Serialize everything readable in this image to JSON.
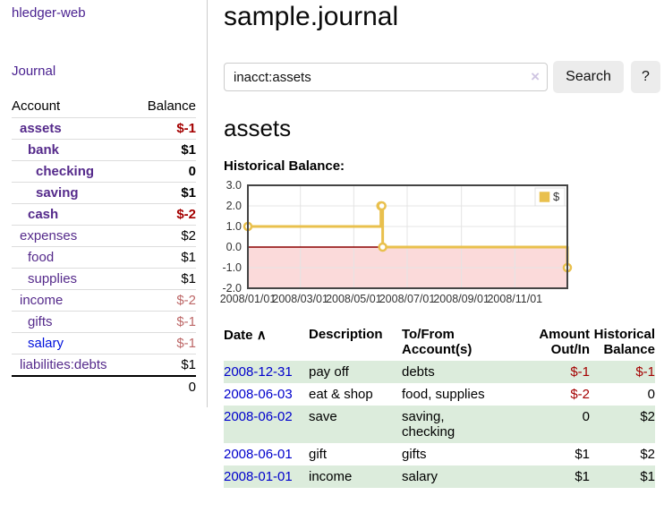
{
  "header": {
    "title": "sample.journal"
  },
  "search": {
    "value": "inacct:assets",
    "clear_icon": "×",
    "button_label": "Search",
    "help_label": "?"
  },
  "account_page": {
    "heading": "assets",
    "chart_label": "Historical Balance:"
  },
  "sidebar": {
    "app_title": "hledger-web",
    "nav": {
      "journal_label": "Journal"
    },
    "accounts_table": {
      "headers": {
        "account": "Account",
        "balance": "Balance"
      },
      "rows": [
        {
          "name": "assets",
          "depth": 1,
          "bold": true,
          "balance": "$-1",
          "balance_style": "neg-strong"
        },
        {
          "name": "bank",
          "depth": 2,
          "bold": true,
          "balance": "$1",
          "balance_style": "pos"
        },
        {
          "name": "checking",
          "depth": 3,
          "bold": true,
          "balance": "0",
          "balance_style": "pos"
        },
        {
          "name": "saving",
          "depth": 3,
          "bold": true,
          "balance": "$1",
          "balance_style": "pos"
        },
        {
          "name": "cash",
          "depth": 2,
          "bold": true,
          "balance": "$-2",
          "balance_style": "neg-strong"
        },
        {
          "name": "expenses",
          "depth": 1,
          "bold": false,
          "balance": "$2",
          "balance_style": "pos"
        },
        {
          "name": "food",
          "depth": 2,
          "bold": false,
          "balance": "$1",
          "balance_style": "pos"
        },
        {
          "name": "supplies",
          "depth": 2,
          "bold": false,
          "balance": "$1",
          "balance_style": "pos"
        },
        {
          "name": "income",
          "depth": 1,
          "bold": false,
          "balance": "$-2",
          "balance_style": "neg-muted"
        },
        {
          "name": "gifts",
          "depth": 2,
          "bold": false,
          "balance": "$-1",
          "balance_style": "neg-muted"
        },
        {
          "name": "salary",
          "depth": 2,
          "bold": false,
          "balance": "$-1",
          "balance_style": "neg-muted",
          "link_color": "blue"
        },
        {
          "name": "liabilities:debts",
          "depth": 1,
          "bold": false,
          "balance": "$1",
          "balance_style": "pos"
        }
      ],
      "total": "0"
    }
  },
  "chart_data": {
    "type": "line",
    "step": true,
    "series": [
      {
        "name": "$",
        "color": "#e9c04d",
        "points": [
          [
            "2008-01-01",
            1
          ],
          [
            "2008-06-01",
            2
          ],
          [
            "2008-06-02",
            2
          ],
          [
            "2008-06-03",
            0
          ],
          [
            "2008-12-31",
            -1
          ]
        ]
      }
    ],
    "x_ticks": [
      "2008/01/01",
      "2008/03/01",
      "2008/05/01",
      "2008/07/01",
      "2008/09/01",
      "2008/11/01"
    ],
    "y_ticks": [
      3.0,
      2.0,
      1.0,
      0.0,
      -1.0,
      -2.0
    ],
    "ylim": [
      -2,
      3
    ],
    "x_range": [
      "2008-01-01",
      "2008-12-31"
    ],
    "grid": true,
    "legend_position": "top-right",
    "negative_region_shaded": true
  },
  "register_table": {
    "headers": {
      "date": "Date",
      "sort_indicator": "∧",
      "description": "Description",
      "account": "To/From\nAccount(s)",
      "amount": "Amount\nOut/In",
      "balance": "Historical\nBalance"
    },
    "rows": [
      {
        "date": "2008-12-31",
        "description": "pay off",
        "accounts": "debts",
        "amount": "$-1",
        "amount_style": "neg",
        "balance": "$-1",
        "balance_style": "neg",
        "shaded": true
      },
      {
        "date": "2008-06-03",
        "description": "eat & shop",
        "accounts": "food, supplies",
        "amount": "$-2",
        "amount_style": "neg",
        "balance": "0",
        "balance_style": "pos",
        "shaded": false
      },
      {
        "date": "2008-06-02",
        "description": "save",
        "accounts": "saving,\nchecking",
        "amount": "0",
        "amount_style": "pos",
        "balance": "$2",
        "balance_style": "pos",
        "shaded": true
      },
      {
        "date": "2008-06-01",
        "description": "gift",
        "accounts": "gifts",
        "amount": "$1",
        "amount_style": "pos",
        "balance": "$2",
        "balance_style": "pos",
        "shaded": false
      },
      {
        "date": "2008-01-01",
        "description": "income",
        "accounts": "salary",
        "amount": "$1",
        "amount_style": "pos",
        "balance": "$1",
        "balance_style": "pos",
        "shaded": true
      }
    ]
  },
  "colors": {
    "link_purple": "#4a2190",
    "account_purple": "#552a8b",
    "link_blue": "#0011dd",
    "date_blue": "#0000cc",
    "negative_strong": "#a40000",
    "negative_muted": "#bd6767",
    "row_green": "#dcecdc",
    "chart_line_gold": "#e9c04d",
    "chart_negative_fill": "#fbdada",
    "chart_zero_line": "#8b0000",
    "button_bg": "#ececec",
    "border_gray": "#cccccc"
  }
}
